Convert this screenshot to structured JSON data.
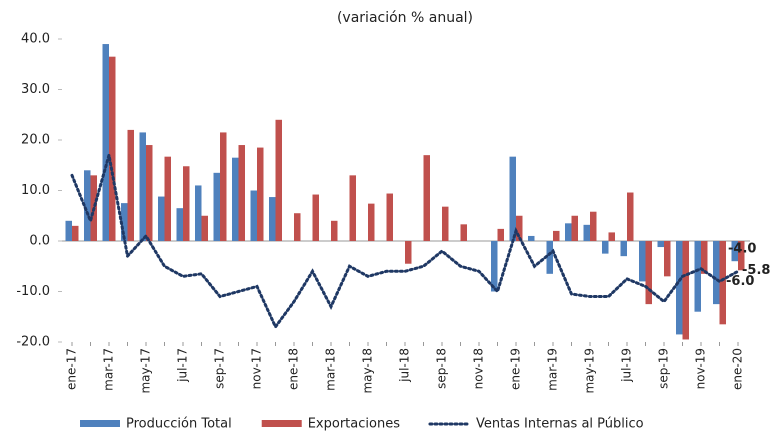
{
  "chart_data": {
    "type": "bar-line",
    "title": "(variación % anual)",
    "categories": [
      "ene-17",
      null,
      "mar-17",
      null,
      "may-17",
      null,
      "jul-17",
      null,
      "sep-17",
      null,
      "nov-17",
      null,
      "ene-18",
      null,
      "mar-18",
      null,
      "may-18",
      null,
      "jul-18",
      null,
      "sep-18",
      null,
      "nov-18",
      null,
      "ene-19",
      null,
      "mar-19",
      null,
      "may-19",
      null,
      "jul-19",
      null,
      "sep-19",
      null,
      "nov-19",
      null,
      "ene-20"
    ],
    "series": [
      {
        "name": "Producción Total",
        "type": "bar",
        "color": "#4f81bd",
        "values": [
          4,
          14,
          39,
          7.5,
          21.5,
          8.8,
          6.5,
          11,
          13.5,
          16.5,
          10,
          8.7,
          null,
          null,
          null,
          null,
          null,
          null,
          null,
          null,
          null,
          null,
          null,
          -10,
          16.7,
          1,
          -6.5,
          3.5,
          3.2,
          -2.5,
          -3,
          -8,
          -1.2,
          -18.5,
          -14,
          -12.5,
          -4.0
        ],
        "value_labels": [
          null,
          null,
          null,
          null,
          null,
          null,
          null,
          null,
          null,
          null,
          null,
          null,
          null,
          null,
          null,
          null,
          null,
          null,
          null,
          null,
          null,
          null,
          null,
          null,
          null,
          null,
          null,
          null,
          null,
          null,
          null,
          null,
          null,
          null,
          null,
          null,
          "-4.0"
        ]
      },
      {
        "name": "Exportaciones",
        "type": "bar",
        "color": "#c0504d",
        "values": [
          3,
          13,
          36.5,
          22,
          19,
          16.7,
          14.8,
          5,
          21.5,
          19,
          18.5,
          24,
          5.5,
          9.2,
          4,
          13,
          7.4,
          9.4,
          -4.5,
          17,
          6.8,
          3.3,
          null,
          2.4,
          5,
          null,
          2,
          5,
          5.8,
          1.7,
          9.6,
          -12.5,
          -7,
          -19.5,
          -6.5,
          -16.5,
          -5.8
        ],
        "value_labels": [
          null,
          null,
          null,
          null,
          null,
          null,
          null,
          null,
          null,
          null,
          null,
          null,
          null,
          null,
          null,
          null,
          null,
          null,
          null,
          null,
          null,
          null,
          null,
          null,
          null,
          null,
          null,
          null,
          null,
          null,
          null,
          null,
          null,
          null,
          null,
          null,
          "-5.8"
        ]
      },
      {
        "name": "Ventas Internas al Público",
        "type": "line",
        "color": "#1f3864",
        "values": [
          13,
          4,
          17,
          -3,
          1,
          -5,
          -7,
          -6.5,
          -11,
          -10,
          -9,
          -17,
          -12,
          -6,
          -13,
          -5,
          -7,
          -6,
          -6,
          -5,
          -2,
          -5,
          -6,
          -10,
          2,
          -5,
          -2,
          -10.5,
          -11,
          -11,
          -7.5,
          -9,
          -12,
          -7,
          -5.5,
          -8,
          -6.0
        ],
        "value_labels": [
          null,
          null,
          null,
          null,
          null,
          null,
          null,
          null,
          null,
          null,
          null,
          null,
          null,
          null,
          null,
          null,
          null,
          null,
          null,
          null,
          null,
          null,
          null,
          null,
          null,
          null,
          null,
          null,
          null,
          null,
          null,
          null,
          null,
          null,
          null,
          null,
          "-6.0"
        ]
      }
    ],
    "ylim": [
      -20,
      40
    ],
    "yticks": [
      {
        "value": -20,
        "label": "-20.0"
      },
      {
        "value": -10,
        "label": "-10.0"
      },
      {
        "value": 0,
        "label": "0.0"
      },
      {
        "value": 10,
        "label": "10.0"
      },
      {
        "value": 20,
        "label": "20.0"
      },
      {
        "value": 30,
        "label": "30.0"
      },
      {
        "value": 40,
        "label": "40.0"
      }
    ],
    "grid": false,
    "legend": "bottom"
  }
}
